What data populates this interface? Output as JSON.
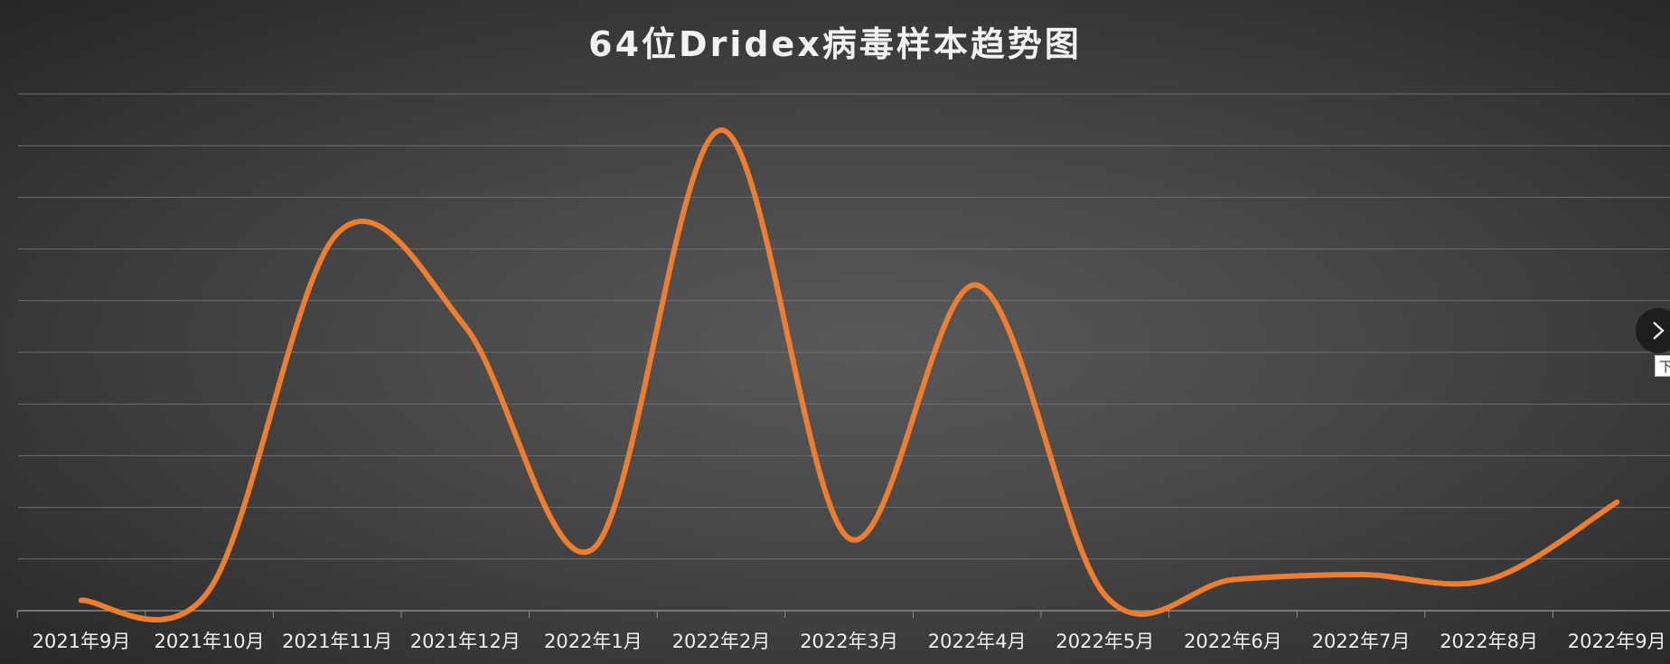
{
  "chart_data": {
    "type": "line",
    "title": "64位Dridex病毒样本趋势图",
    "categories": [
      "2021年9月",
      "2021年10月",
      "2021年11月",
      "2021年12月",
      "2022年1月",
      "2022年2月",
      "2022年3月",
      "2022年4月",
      "2022年5月",
      "2022年6月",
      "2022年7月",
      "2022年8月",
      "2022年9月"
    ],
    "series": [
      {
        "values": [
          2,
          4,
          73,
          55,
          12,
          93,
          14,
          63,
          3,
          6,
          7,
          6,
          21
        ],
        "color": "#ed7d31"
      }
    ],
    "ylim": [
      0,
      100
    ],
    "y_gridlines": 10,
    "y_tick_labels_visible": false,
    "grid": true,
    "smooth": true,
    "legend": "none"
  },
  "nav": {
    "next_icon": "chevron-right-icon",
    "tooltip": "下"
  }
}
